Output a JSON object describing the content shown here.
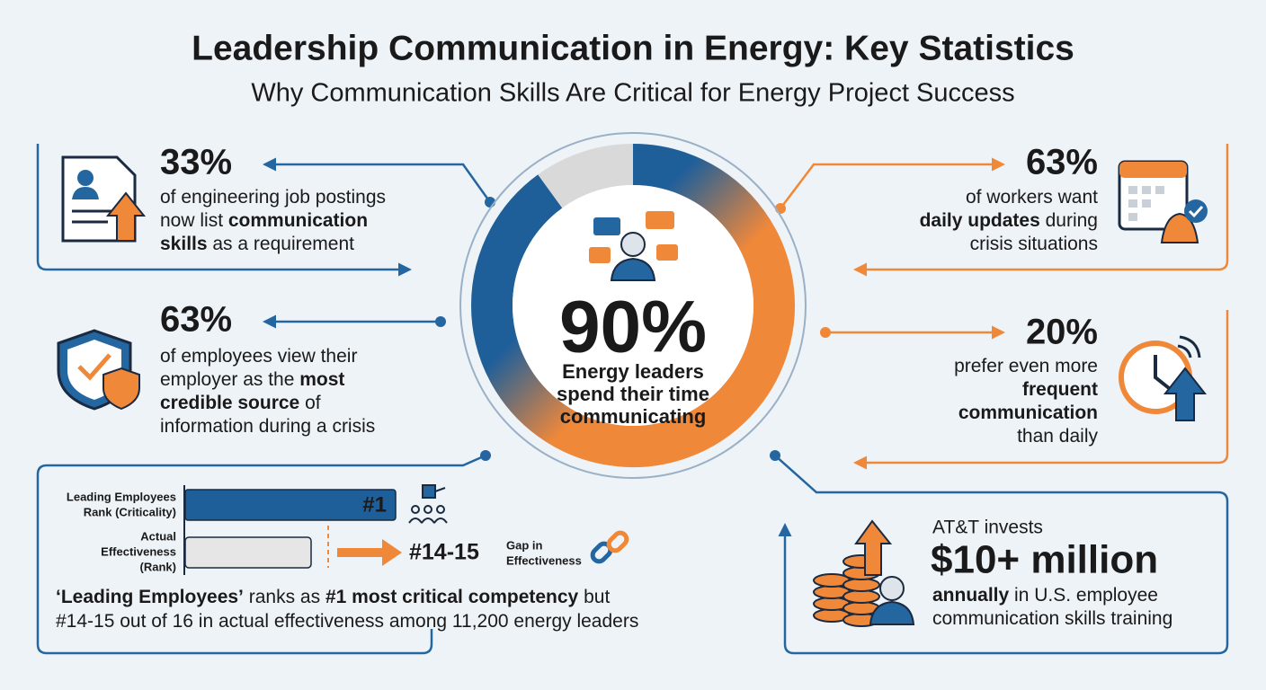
{
  "header": {
    "title": "Leadership Communication in Energy: Key Statistics",
    "subtitle": "Why Communication Skills Are Critical for Energy Project Success"
  },
  "center": {
    "stat": "90%",
    "percent": 90,
    "lines": [
      "Energy leaders",
      "spend their time",
      "communicating"
    ]
  },
  "stats": [
    {
      "value": "33%",
      "lines": [
        [
          {
            "text": "of engineering job postings"
          }
        ],
        [
          {
            "text": "now list "
          },
          {
            "text": "communication",
            "bold": true
          }
        ],
        [
          {
            "text": "skills",
            "bold": true
          },
          {
            "text": " as a requirement"
          }
        ]
      ]
    },
    {
      "value": "63%",
      "lines": [
        [
          {
            "text": "of employees view their"
          }
        ],
        [
          {
            "text": "employer as the "
          },
          {
            "text": "most",
            "bold": true
          }
        ],
        [
          {
            "text": "credible source",
            "bold": true
          },
          {
            "text": " of"
          }
        ],
        [
          {
            "text": "information during a crisis"
          }
        ]
      ]
    },
    {
      "value": "63%",
      "lines": [
        [
          {
            "text": "of workers want"
          }
        ],
        [
          {
            "text": "daily updates",
            "bold": true
          },
          {
            "text": " during"
          }
        ],
        [
          {
            "text": "crisis situations"
          }
        ]
      ]
    },
    {
      "value": "20%",
      "lines": [
        [
          {
            "text": "prefer even more"
          }
        ],
        [
          {
            "text": "frequent",
            "bold": true
          }
        ],
        [
          {
            "text": "communication",
            "bold": true
          }
        ],
        [
          {
            "text": "than daily"
          }
        ]
      ]
    }
  ],
  "ranking": {
    "bars": [
      {
        "label_lines": [
          "Leading Employees",
          "Rank (Criticality)"
        ],
        "badge": "#1"
      },
      {
        "label_lines": [
          "Actual",
          "Effectiveness",
          "(Rank)"
        ]
      }
    ],
    "gap": "#14-15",
    "gap_label": [
      "Gap in",
      "Effectiveness"
    ],
    "caption": [
      [
        {
          "text": "‘Leading Employees’",
          "bold": true
        },
        {
          "text": " ranks as "
        },
        {
          "text": "#1 most critical competency",
          "bold": true
        },
        {
          "text": " but"
        }
      ],
      [
        {
          "text": "#14-15 out of 16 in actual effectiveness among 11,200 energy leaders"
        }
      ]
    ]
  },
  "investment": {
    "intro": "AT&T invests",
    "amount": "$10+ million",
    "lines": [
      [
        {
          "text": "annually",
          "bold": true
        },
        {
          "text": " in U.S. employee"
        }
      ],
      [
        {
          "text": "communication skills training"
        }
      ]
    ]
  }
}
